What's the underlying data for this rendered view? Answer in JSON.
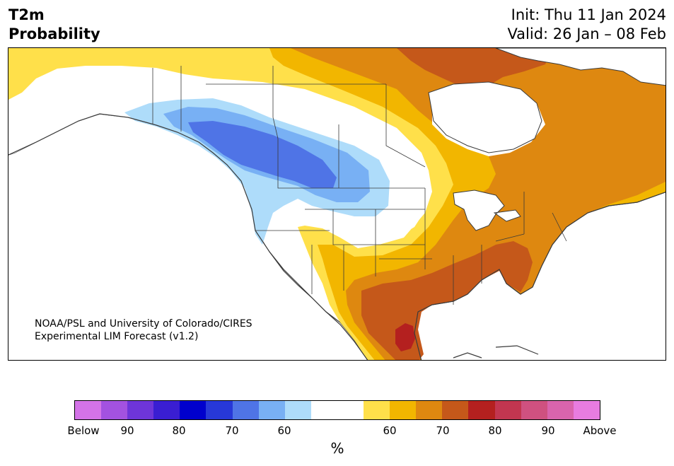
{
  "header": {
    "variable": "T2m",
    "subtitle": "Probability",
    "init": "Init: Thu 11 Jan 2024",
    "valid": "Valid: 26 Jan – 08 Feb"
  },
  "credit": {
    "line1": "NOAA/PSL and University of Colorado/CIRES",
    "line2": "Experimental LIM Forecast (v1.2)"
  },
  "colorbar": {
    "colors": [
      "#d473e8",
      "#a352e0",
      "#6e35d9",
      "#3a1ed2",
      "#0000cd",
      "#2738d8",
      "#4f74e6",
      "#78b0f4",
      "#aedcfa",
      "#ffffff",
      "#ffffff",
      "#ffe04a",
      "#f2b600",
      "#de8810",
      "#c5581a",
      "#b4201f",
      "#c23650",
      "#cf5180",
      "#d964ad",
      "#e87ce0"
    ],
    "tick_labels": [
      "Below",
      "90",
      "80",
      "70",
      "60",
      "60",
      "70",
      "80",
      "90",
      "Above"
    ],
    "unit": "%"
  },
  "map": {
    "region": "North America",
    "categories": [
      "below normal",
      "above normal"
    ],
    "palette": {
      "land_outline": "#3a3a3a",
      "water": "#ffffff",
      "light_blue": "#aedcfa",
      "mid_blue": "#78b0f4",
      "dark_blue": "#4f74e6",
      "yellow": "#ffe04a",
      "gold": "#f2b600",
      "orange": "#de8810",
      "dark_orange": "#c5581a",
      "red": "#b4201f"
    }
  }
}
